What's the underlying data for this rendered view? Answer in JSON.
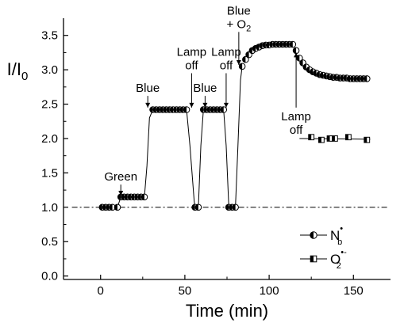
{
  "chart_data": {
    "type": "scatter",
    "xlabel": "Time (min)",
    "ylabel": "I/I",
    "ylabel_sub": "0",
    "xlim": [
      -22,
      172
    ],
    "ylim": [
      -0.05,
      3.75
    ],
    "xticks": [
      0,
      50,
      100,
      150
    ],
    "yticks": [
      0.0,
      0.5,
      1.0,
      1.5,
      2.0,
      2.5,
      3.0,
      3.5
    ],
    "ytick_labels": [
      "0.0",
      "0.5",
      "1.0",
      "1.5",
      "2.0",
      "2.5",
      "3.0",
      "3.5"
    ],
    "reference_line": {
      "y": 1.0,
      "style": "dash-dot"
    },
    "series": [
      {
        "symbol": "half-filled-circle",
        "legend_label": "N",
        "legend_sub": "b",
        "legend_sup": "•",
        "x": [
          1,
          3,
          5,
          7,
          10,
          12,
          14,
          16,
          18,
          20,
          22,
          24,
          26,
          31,
          33,
          35,
          37,
          39,
          41,
          43,
          45,
          47,
          49,
          51,
          56,
          58,
          61,
          63,
          65,
          67,
          69,
          71,
          73,
          76,
          78,
          80,
          84,
          86,
          88,
          90,
          92,
          94,
          96,
          98,
          100,
          102,
          104,
          106,
          108,
          110,
          112,
          114,
          116,
          118,
          120,
          122,
          124,
          126,
          128,
          130,
          132,
          134,
          136,
          138,
          140,
          142,
          144,
          146,
          148,
          150,
          152,
          154,
          156,
          158
        ],
        "y": [
          1.0,
          1.0,
          1.0,
          1.0,
          1.0,
          1.15,
          1.15,
          1.15,
          1.15,
          1.15,
          1.15,
          1.15,
          1.15,
          2.42,
          2.42,
          2.42,
          2.42,
          2.42,
          2.42,
          2.42,
          2.42,
          2.42,
          2.42,
          2.42,
          1.0,
          1.0,
          2.42,
          2.42,
          2.42,
          2.42,
          2.42,
          2.42,
          2.42,
          1.0,
          1.0,
          1.0,
          3.05,
          3.15,
          3.22,
          3.28,
          3.31,
          3.33,
          3.35,
          3.36,
          3.36,
          3.37,
          3.37,
          3.37,
          3.37,
          3.37,
          3.37,
          3.37,
          3.28,
          3.17,
          3.1,
          3.04,
          3.0,
          2.97,
          2.95,
          2.93,
          2.92,
          2.91,
          2.9,
          2.89,
          2.89,
          2.88,
          2.88,
          2.88,
          2.87,
          2.87,
          2.87,
          2.87,
          2.87,
          2.87
        ]
      },
      {
        "symbol": "half-filled-square",
        "legend_label": "O",
        "legend_sub": "2",
        "legend_sup": "•-",
        "x": [
          125,
          131,
          136,
          139,
          147,
          158
        ],
        "y": [
          2.02,
          1.98,
          2.0,
          2.0,
          2.02,
          1.98
        ]
      }
    ],
    "fit_lines": [
      {
        "series": 0,
        "x": [
          10,
          12,
          26,
          27.5,
          29,
          31,
          51,
          53,
          55.5,
          56,
          58,
          59.5,
          61,
          73,
          74.5,
          76,
          78,
          80,
          81.5,
          83,
          84
        ],
        "y": [
          1.0,
          1.15,
          1.15,
          1.6,
          2.3,
          2.42,
          2.42,
          1.9,
          1.1,
          1.0,
          1.0,
          1.9,
          2.42,
          2.42,
          1.9,
          1.05,
          1.0,
          1.0,
          1.9,
          2.85,
          3.05
        ]
      },
      {
        "series": 1,
        "x": [
          118,
          160
        ],
        "y": [
          2.0,
          1.99
        ]
      }
    ],
    "annotations": [
      {
        "lines": [
          "Green"
        ],
        "x": 12,
        "arrow_tip_y": 1.17,
        "arrow_tail_y": 1.33
      },
      {
        "lines": [
          "Blue"
        ],
        "x": 28,
        "arrow_tip_y": 2.45,
        "arrow_tail_y": 2.62
      },
      {
        "lines": [
          "Lamp",
          "off"
        ],
        "x": 54,
        "arrow_tip_y": 2.45,
        "arrow_tail_y": 2.95
      },
      {
        "lines": [
          "Blue"
        ],
        "x": 62,
        "arrow_tip_y": 2.45,
        "arrow_tail_y": 2.62
      },
      {
        "lines": [
          "Lamp",
          "off"
        ],
        "x": 74.5,
        "arrow_tip_y": 2.45,
        "arrow_tail_y": 2.95
      },
      {
        "lines": [
          "Blue",
          "+ O"
        ],
        "line2_sub": "2",
        "x": 82,
        "arrow_tip_y": 3.07,
        "arrow_tail_y": 3.55
      },
      {
        "lines": [
          "Lamp",
          "off"
        ],
        "x": 116,
        "arrow_tip_y": 3.25,
        "arrow_tail_y": 2.45,
        "label_below": true
      }
    ],
    "legend_position": "lower-right",
    "grid": false
  }
}
